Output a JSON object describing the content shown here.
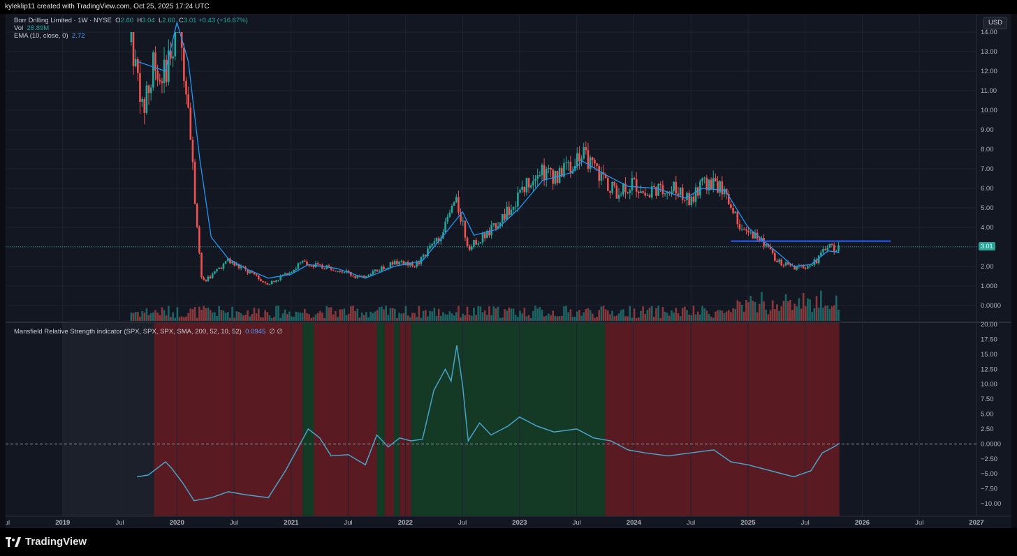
{
  "attribution": "kyleklip11 created with TradingView.com, Oct 25, 2025 17:24 UTC",
  "currency_button": "USD",
  "legend": {
    "symbol": "Borr Drilling Limited · 1W · NYSE",
    "ohlc": {
      "o": "2.60",
      "h": "3.04",
      "l": "2.60",
      "c": "3.01",
      "change": "+0.43 (+16.67%)"
    },
    "vol_label": "Vol",
    "vol_value": "28.89M",
    "ema_label": "EMA (10, close, 0)",
    "ema_value": "2.72",
    "indicator_label": "Mansfield Relative Strength indicator (SPX, SPX, SPX, SMA, 200, 52, 10, 52)",
    "indicator_value": "0.0945",
    "indicator_na": "∅ ∅"
  },
  "last_price_tag": "3.01",
  "brand": "TradingView",
  "colors": {
    "bg": "#131722",
    "up": "#26a69a",
    "down": "#ef5350",
    "ema": "#2196f3",
    "rs_line": "#4aa3c8",
    "zone_red": "#5a1a22",
    "zone_green": "#143a26",
    "resistance": "#2962ff"
  },
  "chart_data": {
    "type": "candlestick",
    "interval": "1W",
    "price_axis_ticks": [
      "14.00",
      "13.00",
      "12.00",
      "11.00",
      "10.00",
      "9.00",
      "8.00",
      "7.00",
      "6.00",
      "5.00",
      "4.00",
      "3.00",
      "2.00",
      "1.000",
      "0.0000"
    ],
    "indicator_axis_ticks": [
      "20.00",
      "17.50",
      "15.00",
      "12.50",
      "10.00",
      "7.50",
      "5.00",
      "2.50",
      "0.0000",
      "−2.50",
      "−5.00",
      "−7.50",
      "−10.00"
    ],
    "time_axis_labels": [
      "Jul",
      "2019",
      "Jul",
      "2020",
      "Jul",
      "2021",
      "Jul",
      "2022",
      "Jul",
      "2023",
      "Jul",
      "2024",
      "Jul",
      "2025",
      "Jul",
      "2026",
      "Jul",
      "2027"
    ],
    "time_axis_years": [
      2018.5,
      2019,
      2019.5,
      2020,
      2020.5,
      2021,
      2021.5,
      2022,
      2022.5,
      2023,
      2023.5,
      2024,
      2024.5,
      2025,
      2025.5,
      2026,
      2026.5,
      2027
    ],
    "price_path": [
      [
        2019.6,
        13.5
      ],
      [
        2019.7,
        10.0
      ],
      [
        2019.8,
        12.5
      ],
      [
        2019.9,
        11.8
      ],
      [
        2020.0,
        14.5
      ],
      [
        2020.1,
        10.5
      ],
      [
        2020.15,
        6.0
      ],
      [
        2020.22,
        1.2
      ],
      [
        2020.3,
        1.5
      ],
      [
        2020.45,
        2.3
      ],
      [
        2020.6,
        1.8
      ],
      [
        2020.8,
        1.1
      ],
      [
        2020.95,
        1.6
      ],
      [
        2021.1,
        2.2
      ],
      [
        2021.25,
        2.0
      ],
      [
        2021.45,
        1.8
      ],
      [
        2021.6,
        1.4
      ],
      [
        2021.75,
        1.8
      ],
      [
        2021.9,
        2.2
      ],
      [
        2022.1,
        2.1
      ],
      [
        2022.3,
        3.5
      ],
      [
        2022.45,
        5.4
      ],
      [
        2022.55,
        3.0
      ],
      [
        2022.7,
        3.6
      ],
      [
        2022.85,
        4.5
      ],
      [
        2023.0,
        5.6
      ],
      [
        2023.15,
        7.0
      ],
      [
        2023.3,
        6.5
      ],
      [
        2023.45,
        7.2
      ],
      [
        2023.55,
        7.8
      ],
      [
        2023.7,
        6.6
      ],
      [
        2023.85,
        5.8
      ],
      [
        2024.0,
        6.2
      ],
      [
        2024.15,
        5.8
      ],
      [
        2024.35,
        6.1
      ],
      [
        2024.5,
        5.3
      ],
      [
        2024.6,
        6.3
      ],
      [
        2024.75,
        6.1
      ],
      [
        2024.85,
        5.2
      ],
      [
        2024.95,
        3.7
      ],
      [
        2025.1,
        3.5
      ],
      [
        2025.25,
        2.3
      ],
      [
        2025.4,
        1.9
      ],
      [
        2025.5,
        2.0
      ],
      [
        2025.6,
        2.3
      ],
      [
        2025.7,
        3.1
      ],
      [
        2025.75,
        2.9
      ],
      [
        2025.8,
        3.0
      ]
    ],
    "ema_path": [
      [
        2019.65,
        12.5
      ],
      [
        2019.8,
        12.2
      ],
      [
        2019.9,
        12.0
      ],
      [
        2020.0,
        14.5
      ],
      [
        2020.1,
        12.5
      ],
      [
        2020.2,
        7.5
      ],
      [
        2020.3,
        3.5
      ],
      [
        2020.45,
        2.4
      ],
      [
        2020.6,
        1.9
      ],
      [
        2020.8,
        1.4
      ],
      [
        2021.0,
        1.6
      ],
      [
        2021.15,
        2.1
      ],
      [
        2021.4,
        1.9
      ],
      [
        2021.65,
        1.4
      ],
      [
        2021.9,
        2.0
      ],
      [
        2022.15,
        2.3
      ],
      [
        2022.35,
        3.7
      ],
      [
        2022.5,
        4.8
      ],
      [
        2022.6,
        3.6
      ],
      [
        2022.8,
        3.9
      ],
      [
        2023.0,
        5.0
      ],
      [
        2023.2,
        6.4
      ],
      [
        2023.45,
        6.8
      ],
      [
        2023.55,
        7.4
      ],
      [
        2023.75,
        6.7
      ],
      [
        2023.95,
        6.1
      ],
      [
        2024.2,
        6.0
      ],
      [
        2024.45,
        5.5
      ],
      [
        2024.6,
        6.0
      ],
      [
        2024.8,
        5.9
      ],
      [
        2025.0,
        4.0
      ],
      [
        2025.2,
        3.0
      ],
      [
        2025.4,
        2.0
      ],
      [
        2025.55,
        2.1
      ],
      [
        2025.7,
        2.8
      ],
      [
        2025.8,
        2.72
      ]
    ],
    "resistance_level": {
      "price": 3.3,
      "from": 2024.85,
      "to": 2026.25
    },
    "rs_path": [
      [
        2019.65,
        -5.5
      ],
      [
        2019.75,
        -5.2
      ],
      [
        2019.9,
        -3.0
      ],
      [
        2019.95,
        -4.0
      ],
      [
        2020.05,
        -6.5
      ],
      [
        2020.15,
        -9.5
      ],
      [
        2020.3,
        -9.0
      ],
      [
        2020.45,
        -8.0
      ],
      [
        2020.6,
        -8.5
      ],
      [
        2020.8,
        -9.0
      ],
      [
        2020.95,
        -4.5
      ],
      [
        2021.05,
        -1.0
      ],
      [
        2021.15,
        2.5
      ],
      [
        2021.25,
        1.0
      ],
      [
        2021.35,
        -2.0
      ],
      [
        2021.5,
        -1.8
      ],
      [
        2021.65,
        -3.5
      ],
      [
        2021.75,
        1.5
      ],
      [
        2021.85,
        -0.5
      ],
      [
        2021.95,
        1.0
      ],
      [
        2022.05,
        0.5
      ],
      [
        2022.15,
        0.8
      ],
      [
        2022.25,
        9.0
      ],
      [
        2022.35,
        12.5
      ],
      [
        2022.4,
        10.5
      ],
      [
        2022.45,
        16.5
      ],
      [
        2022.5,
        10.0
      ],
      [
        2022.55,
        0.5
      ],
      [
        2022.65,
        3.5
      ],
      [
        2022.75,
        1.5
      ],
      [
        2022.9,
        3.0
      ],
      [
        2023.0,
        4.5
      ],
      [
        2023.15,
        3.0
      ],
      [
        2023.3,
        2.0
      ],
      [
        2023.5,
        2.5
      ],
      [
        2023.65,
        1.0
      ],
      [
        2023.8,
        0.5
      ],
      [
        2023.95,
        -1.0
      ],
      [
        2024.1,
        -1.5
      ],
      [
        2024.3,
        -2.0
      ],
      [
        2024.5,
        -1.5
      ],
      [
        2024.7,
        -1.0
      ],
      [
        2024.85,
        -3.0
      ],
      [
        2025.0,
        -3.5
      ],
      [
        2025.2,
        -4.5
      ],
      [
        2025.4,
        -5.5
      ],
      [
        2025.55,
        -4.5
      ],
      [
        2025.65,
        -1.5
      ],
      [
        2025.75,
        -0.5
      ],
      [
        2025.8,
        0.1
      ]
    ],
    "rs_zones": [
      {
        "from": 2019.0,
        "to": 2019.8,
        "color": "neutral"
      },
      {
        "from": 2019.8,
        "to": 2021.1,
        "color": "red"
      },
      {
        "from": 2021.1,
        "to": 2021.2,
        "color": "green"
      },
      {
        "from": 2021.2,
        "to": 2021.75,
        "color": "red"
      },
      {
        "from": 2021.75,
        "to": 2021.82,
        "color": "green"
      },
      {
        "from": 2021.82,
        "to": 2021.9,
        "color": "red"
      },
      {
        "from": 2021.9,
        "to": 2021.95,
        "color": "green"
      },
      {
        "from": 2021.95,
        "to": 2022.05,
        "color": "red"
      },
      {
        "from": 2022.05,
        "to": 2023.75,
        "color": "green"
      },
      {
        "from": 2023.75,
        "to": 2025.8,
        "color": "red"
      }
    ]
  }
}
